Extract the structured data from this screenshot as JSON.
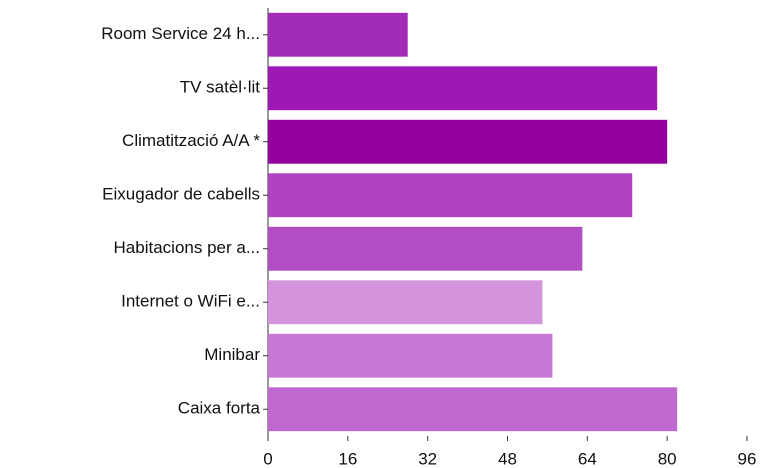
{
  "chart_data": {
    "type": "barh",
    "categories": [
      "Room Service 24 h...",
      "TV satèl·lit",
      "Climatització A/A *",
      "Eixugador de cabells",
      "Habitacions per a...",
      "Internet o WiFi e...",
      "Minibar",
      "Caixa forta"
    ],
    "values": [
      28,
      78,
      80,
      73,
      63,
      55,
      57,
      82
    ],
    "colors": [
      "#a12ab7",
      "#9e18b5",
      "#93009e",
      "#b044c0",
      "#b24ec4",
      "#d394dc",
      "#c676d3",
      "#bf68cf"
    ],
    "xlim": [
      0,
      96
    ],
    "xticks": [
      0,
      16,
      32,
      48,
      64,
      80,
      96
    ]
  }
}
